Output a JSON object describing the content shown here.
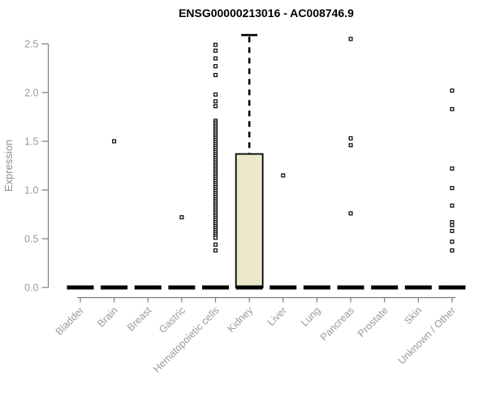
{
  "chart_data": {
    "type": "boxplot",
    "title": "ENSG00000213016 - AC008746.9",
    "ylabel": "Expression",
    "ylim": [
      0,
      2.6
    ],
    "yticks": [
      "0.0",
      "0.5",
      "1.0",
      "1.5",
      "2.0",
      "2.5"
    ],
    "grid": false,
    "legend": false,
    "colors": {
      "box_fill": "#ECE8CB",
      "box_stroke": "#000000",
      "axis_line": "#7d7d7d",
      "tick_text": "#9a9a9a",
      "outlier_stroke": "#000000",
      "outlier_fill": "#ffffff"
    },
    "categories": [
      "Bladder",
      "Brain",
      "Breast",
      "Gastric",
      "Hematopoietic cells",
      "Kidney",
      "Liver",
      "Lung",
      "Pancreas",
      "Prostate",
      "Skin",
      "Unknown / Other"
    ],
    "series": [
      {
        "category": "Bladder",
        "median": 0,
        "q1": 0,
        "q3": 0,
        "whisker_low": 0,
        "whisker_high": 0,
        "outliers": []
      },
      {
        "category": "Brain",
        "median": 0,
        "q1": 0,
        "q3": 0,
        "whisker_low": 0,
        "whisker_high": 0,
        "outliers": [
          1.5
        ]
      },
      {
        "category": "Breast",
        "median": 0,
        "q1": 0,
        "q3": 0,
        "whisker_low": 0,
        "whisker_high": 0,
        "outliers": []
      },
      {
        "category": "Gastric",
        "median": 0,
        "q1": 0,
        "q3": 0,
        "whisker_low": 0,
        "whisker_high": 0,
        "outliers": [
          0.72
        ]
      },
      {
        "category": "Hematopoietic cells",
        "median": 0,
        "q1": 0,
        "q3": 0,
        "whisker_low": 0,
        "whisker_high": 0,
        "outliers": [
          2.49,
          2.43,
          2.35,
          2.27,
          2.18,
          1.98,
          1.91,
          1.86,
          1.71,
          1.69,
          1.67,
          1.65,
          1.63,
          1.61,
          1.59,
          1.57,
          1.55,
          1.53,
          1.51,
          1.49,
          1.47,
          1.45,
          1.43,
          1.41,
          1.39,
          1.37,
          1.35,
          1.33,
          1.31,
          1.29,
          1.27,
          1.25,
          1.23,
          1.21,
          1.19,
          1.17,
          1.15,
          1.13,
          1.11,
          1.09,
          1.07,
          1.05,
          1.03,
          1.01,
          0.99,
          0.97,
          0.95,
          0.93,
          0.91,
          0.89,
          0.87,
          0.85,
          0.83,
          0.81,
          0.79,
          0.77,
          0.75,
          0.73,
          0.71,
          0.69,
          0.67,
          0.65,
          0.63,
          0.61,
          0.59,
          0.57,
          0.55,
          0.53,
          0.51,
          0.44,
          0.38
        ]
      },
      {
        "category": "Kidney",
        "median": 0,
        "q1": 0,
        "q3": 1.37,
        "whisker_low": 0,
        "whisker_high": 2.59,
        "outliers": []
      },
      {
        "category": "Liver",
        "median": 0,
        "q1": 0,
        "q3": 0,
        "whisker_low": 0,
        "whisker_high": 0,
        "outliers": [
          1.15
        ]
      },
      {
        "category": "Lung",
        "median": 0,
        "q1": 0,
        "q3": 0,
        "whisker_low": 0,
        "whisker_high": 0,
        "outliers": []
      },
      {
        "category": "Pancreas",
        "median": 0,
        "q1": 0,
        "q3": 0,
        "whisker_low": 0,
        "whisker_high": 0,
        "outliers": [
          2.55,
          1.53,
          1.46,
          0.76
        ]
      },
      {
        "category": "Prostate",
        "median": 0,
        "q1": 0,
        "q3": 0,
        "whisker_low": 0,
        "whisker_high": 0,
        "outliers": []
      },
      {
        "category": "Skin",
        "median": 0,
        "q1": 0,
        "q3": 0,
        "whisker_low": 0,
        "whisker_high": 0,
        "outliers": []
      },
      {
        "category": "Unknown / Other",
        "median": 0,
        "q1": 0,
        "q3": 0,
        "whisker_low": 0,
        "whisker_high": 0,
        "outliers": [
          2.02,
          1.83,
          1.22,
          1.02,
          0.84,
          0.67,
          0.64,
          0.58,
          0.47,
          0.38
        ]
      }
    ]
  }
}
